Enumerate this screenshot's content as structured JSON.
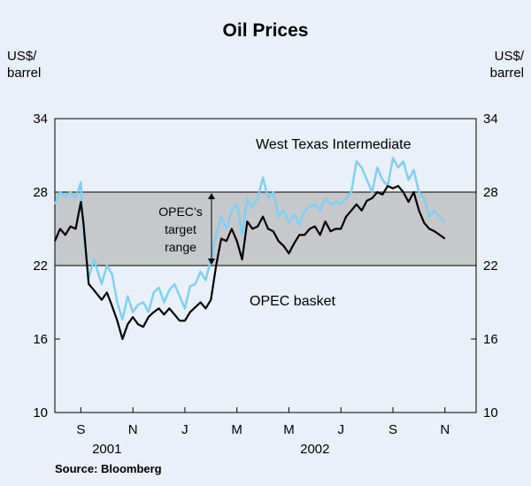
{
  "chart_data": {
    "type": "line",
    "title": "Oil Prices",
    "ylabel_left": [
      "US$/",
      "barrel"
    ],
    "ylabel_right": [
      "US$/",
      "barrel"
    ],
    "ylim": [
      10,
      34
    ],
    "yticks": [
      10,
      16,
      22,
      28,
      34
    ],
    "xlim": [
      0,
      16.2
    ],
    "month_ticks": [
      {
        "label": "S",
        "x": 1.0
      },
      {
        "label": "N",
        "x": 3.0
      },
      {
        "label": "J",
        "x": 5.0
      },
      {
        "label": "M",
        "x": 7.0
      },
      {
        "label": "M",
        "x": 9.0
      },
      {
        "label": "J",
        "x": 11.0
      },
      {
        "label": "S",
        "x": 13.0
      },
      {
        "label": "N",
        "x": 15.0
      }
    ],
    "years": [
      {
        "label": "2001",
        "x": 2.0
      },
      {
        "label": "2002",
        "x": 10.0
      }
    ],
    "band": {
      "low": 22,
      "high": 28,
      "label": [
        "OPEC’s",
        "target",
        "range"
      ]
    },
    "source": "Source: Bloomberg",
    "series": [
      {
        "name": "West Texas Intermediate",
        "color": "#7fd0f2",
        "x": [
          0,
          0.2,
          0.4,
          0.6,
          0.8,
          1.0,
          1.1,
          1.3,
          1.5,
          1.8,
          2.0,
          2.2,
          2.4,
          2.6,
          2.8,
          3.0,
          3.2,
          3.4,
          3.6,
          3.8,
          4.0,
          4.2,
          4.4,
          4.6,
          4.8,
          5.0,
          5.2,
          5.4,
          5.6,
          5.8,
          6.0,
          6.2,
          6.4,
          6.6,
          6.8,
          7.0,
          7.2,
          7.4,
          7.6,
          7.8,
          8.0,
          8.2,
          8.4,
          8.6,
          8.8,
          9.0,
          9.2,
          9.4,
          9.6,
          9.8,
          10.0,
          10.2,
          10.4,
          10.6,
          10.8,
          11.0,
          11.2,
          11.4,
          11.6,
          11.8,
          12.0,
          12.2,
          12.4,
          12.6,
          12.8,
          13.0,
          13.2,
          13.4,
          13.6,
          13.8,
          14.0,
          14.2,
          14.4,
          14.6,
          14.8,
          15.0
        ],
        "values": [
          27.0,
          28.0,
          27.6,
          28.0,
          27.5,
          28.8,
          24.5,
          21.0,
          22.5,
          20.5,
          22.0,
          21.3,
          19.0,
          17.6,
          19.5,
          18.2,
          18.8,
          19.0,
          18.2,
          19.8,
          20.2,
          19.0,
          20.0,
          20.5,
          19.5,
          18.5,
          20.3,
          20.5,
          21.5,
          20.8,
          22.5,
          24.5,
          26.0,
          25.0,
          26.5,
          27.0,
          24.5,
          27.5,
          26.8,
          27.5,
          29.2,
          27.5,
          28.0,
          26.0,
          26.5,
          25.5,
          26.2,
          25.3,
          26.5,
          26.8,
          27.0,
          26.5,
          27.5,
          27.0,
          27.2,
          27.0,
          27.5,
          28.0,
          30.5,
          30.0,
          29.0,
          28.0,
          30.0,
          29.0,
          28.5,
          30.8,
          30.0,
          30.5,
          29.0,
          29.8,
          28.0,
          27.5,
          26.0,
          26.5,
          26.0,
          25.5
        ]
      },
      {
        "name": "OPEC basket",
        "color": "#000000",
        "x": [
          0,
          0.2,
          0.4,
          0.6,
          0.8,
          1.0,
          1.1,
          1.3,
          1.5,
          1.8,
          2.0,
          2.2,
          2.4,
          2.6,
          2.8,
          3.0,
          3.2,
          3.4,
          3.6,
          3.8,
          4.0,
          4.2,
          4.4,
          4.6,
          4.8,
          5.0,
          5.2,
          5.4,
          5.6,
          5.8,
          6.0,
          6.2,
          6.4,
          6.6,
          6.8,
          7.0,
          7.2,
          7.4,
          7.6,
          7.8,
          8.0,
          8.2,
          8.4,
          8.6,
          8.8,
          9.0,
          9.2,
          9.4,
          9.6,
          9.8,
          10.0,
          10.2,
          10.4,
          10.6,
          10.8,
          11.0,
          11.2,
          11.4,
          11.6,
          11.8,
          12.0,
          12.2,
          12.4,
          12.6,
          12.8,
          13.0,
          13.2,
          13.4,
          13.6,
          13.8,
          14.0,
          14.2,
          14.4,
          14.6,
          14.8,
          15.0
        ],
        "values": [
          24.0,
          25.0,
          24.5,
          25.2,
          25.0,
          27.2,
          25.5,
          20.5,
          20.0,
          19.2,
          19.8,
          18.7,
          17.5,
          16.0,
          17.2,
          17.8,
          17.2,
          17.0,
          17.8,
          18.2,
          18.5,
          18.0,
          18.5,
          18.0,
          17.5,
          17.5,
          18.2,
          18.6,
          19.0,
          18.5,
          19.2,
          22.0,
          24.2,
          24.0,
          25.0,
          24.0,
          22.5,
          25.6,
          25.0,
          25.2,
          26.0,
          25.0,
          24.8,
          24.0,
          23.6,
          23.0,
          23.8,
          24.5,
          24.5,
          25.0,
          25.2,
          24.5,
          25.6,
          24.8,
          25.0,
          25.0,
          26.0,
          26.5,
          27.0,
          26.5,
          27.3,
          27.5,
          28.0,
          27.8,
          28.5,
          28.3,
          28.5,
          28.0,
          27.2,
          28.0,
          26.5,
          25.5,
          25.0,
          24.8,
          24.5,
          24.2
        ]
      }
    ]
  }
}
